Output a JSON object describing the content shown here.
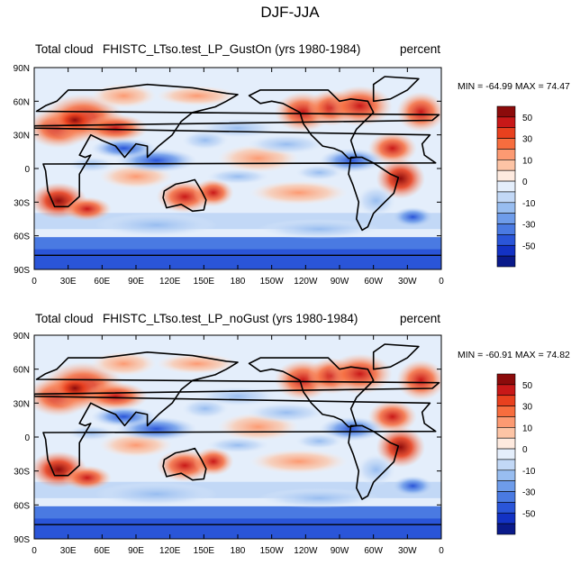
{
  "title": "DJF-JJA",
  "panels": [
    {
      "left_label": "Total cloud",
      "center_label": "FHISTC_LTso.test_LP_GustOn (yrs 1980-1984)",
      "right_label": "percent",
      "minmax": "MIN = -64.99 MAX =  74.47"
    },
    {
      "left_label": "Total cloud",
      "center_label": "FHISTC_LTso.test_LP_noGust (yrs 1980-1984)",
      "right_label": "percent",
      "minmax": "MIN = -60.91 MAX =  74.82"
    }
  ],
  "lat_ticks": [
    "90N",
    "60N",
    "30N",
    "0",
    "30S",
    "60S",
    "90S"
  ],
  "lon_ticks": [
    "0",
    "30E",
    "60E",
    "90E",
    "120E",
    "150E",
    "180",
    "150W",
    "120W",
    "90W",
    "60W",
    "30W",
    "0"
  ],
  "colorbar": {
    "labels": [
      "50",
      "30",
      "10",
      "0",
      "-10",
      "-30",
      "-50"
    ],
    "colors": [
      "#8c0b0b",
      "#c81818",
      "#e8401e",
      "#f76d3e",
      "#fc9a72",
      "#fdc4a5",
      "#feeadf",
      "#e4eefb",
      "#c2d8f6",
      "#98bdf0",
      "#6e9cea",
      "#4a7ae2",
      "#2a55d8",
      "#1332c4",
      "#0a1a8a"
    ]
  }
}
